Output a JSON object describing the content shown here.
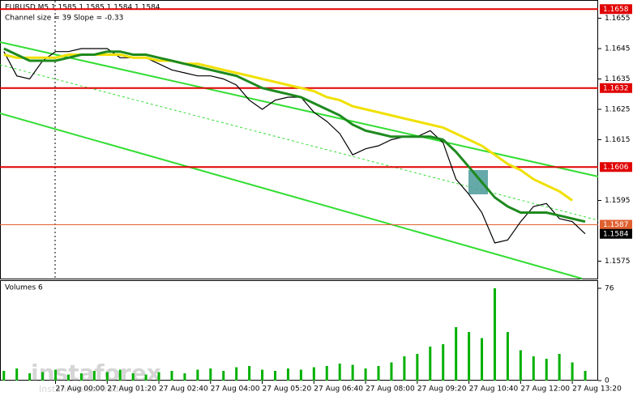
{
  "chart_data": [
    {
      "type": "line",
      "title": "EURUSD,M5  1.1585 1.1585 1.1584 1.1584",
      "subtitle": "Channel size = 39 Slope = -0.33",
      "ylim": [
        1.1569,
        1.1661
      ],
      "yticks": [
        1.1655,
        1.1645,
        1.1635,
        1.1625,
        1.1615,
        1.1595,
        1.1575
      ],
      "series": [
        {
          "color": "#000000",
          "values": [
            1.1644,
            1.1636,
            1.1635,
            1.1641,
            1.1644,
            1.1644,
            1.1645,
            1.1645,
            1.1645,
            1.1642,
            1.1642,
            1.1642,
            1.164,
            1.1638,
            1.1637,
            1.1636,
            1.1636,
            1.1635,
            1.1633,
            1.1628,
            1.1625,
            1.1628,
            1.1629,
            1.1629,
            1.1624,
            1.1621,
            1.1617,
            1.161,
            1.1612,
            1.1613,
            1.1615,
            1.1616,
            1.1616,
            1.1618,
            1.1614,
            1.1602,
            1.1597,
            1.1591,
            1.1581,
            1.1582,
            1.1588,
            1.1593,
            1.1594,
            1.1589,
            1.1588,
            1.1584
          ]
        },
        {
          "color": "#f0e000",
          "values": [
            1.1643,
            1.1642,
            1.1642,
            1.1642,
            1.1642,
            1.1643,
            1.1643,
            1.1643,
            1.1643,
            1.1643,
            1.1642,
            1.1642,
            1.1641,
            1.1641,
            1.164,
            1.164,
            1.1639,
            1.1638,
            1.1637,
            1.1636,
            1.1635,
            1.1634,
            1.1633,
            1.1632,
            1.1631,
            1.1629,
            1.1628,
            1.1626,
            1.1625,
            1.1624,
            1.1623,
            1.1622,
            1.1621,
            1.162,
            1.1619,
            1.1617,
            1.1615,
            1.1613,
            1.161,
            1.1607,
            1.1605,
            1.1602,
            1.16,
            1.1598,
            1.1595,
            null
          ]
        },
        {
          "color": "#1e8a1e",
          "values": [
            1.1645,
            1.1643,
            1.1641,
            1.1641,
            1.1641,
            1.1642,
            1.1643,
            1.1643,
            1.1644,
            1.1644,
            1.1643,
            1.1643,
            1.1642,
            1.1641,
            1.164,
            1.1639,
            1.1638,
            1.1637,
            1.1636,
            1.1634,
            1.1632,
            1.1631,
            1.163,
            1.1629,
            1.1627,
            1.1625,
            1.1623,
            1.162,
            1.1618,
            1.1617,
            1.1616,
            1.1616,
            1.1616,
            1.1616,
            1.1615,
            1.1611,
            1.1606,
            1.1601,
            1.1596,
            1.1593,
            1.1591,
            1.1591,
            1.1591,
            1.159,
            1.1589,
            1.1588
          ]
        }
      ],
      "levels": [
        {
          "value": 1.1658,
          "color": "#e00000"
        },
        {
          "value": 1.1632,
          "color": "#e00000"
        },
        {
          "value": 1.1606,
          "color": "#e00000"
        },
        {
          "value": 1.1587,
          "color": "#e06030"
        },
        {
          "value": 1.1584,
          "color": "#000000"
        }
      ]
    },
    {
      "type": "bar",
      "title": "Volumes 6",
      "color": "#00b000",
      "ylim": [
        0,
        82
      ],
      "yticks": [
        76,
        0
      ],
      "categories": [
        null,
        null,
        null,
        null,
        "27 Aug 00:00",
        null,
        null,
        null,
        "27 Aug 01:20",
        null,
        null,
        null,
        "27 Aug 02:40",
        null,
        null,
        null,
        "27 Aug 04:00",
        null,
        null,
        null,
        "27 Aug 05:20",
        null,
        null,
        null,
        "27 Aug 06:40",
        null,
        null,
        null,
        "27 Aug 08:00",
        null,
        null,
        null,
        "27 Aug 09:20",
        null,
        null,
        null,
        "27 Aug 10:40",
        null,
        null,
        null,
        "27 Aug 12:00",
        null,
        null,
        null,
        "27 Aug 13:20",
        null
      ],
      "values": [
        8,
        10,
        6,
        7,
        9,
        5,
        6,
        8,
        7,
        9,
        6,
        5,
        7,
        8,
        6,
        9,
        10,
        8,
        11,
        12,
        9,
        8,
        10,
        9,
        11,
        12,
        14,
        13,
        10,
        12,
        15,
        20,
        22,
        28,
        30,
        44,
        40,
        35,
        76,
        40,
        25,
        20,
        18,
        22,
        15,
        8
      ]
    }
  ],
  "watermark": {
    "brand": "instaforex",
    "tagline": "Instant Forex Trading"
  }
}
